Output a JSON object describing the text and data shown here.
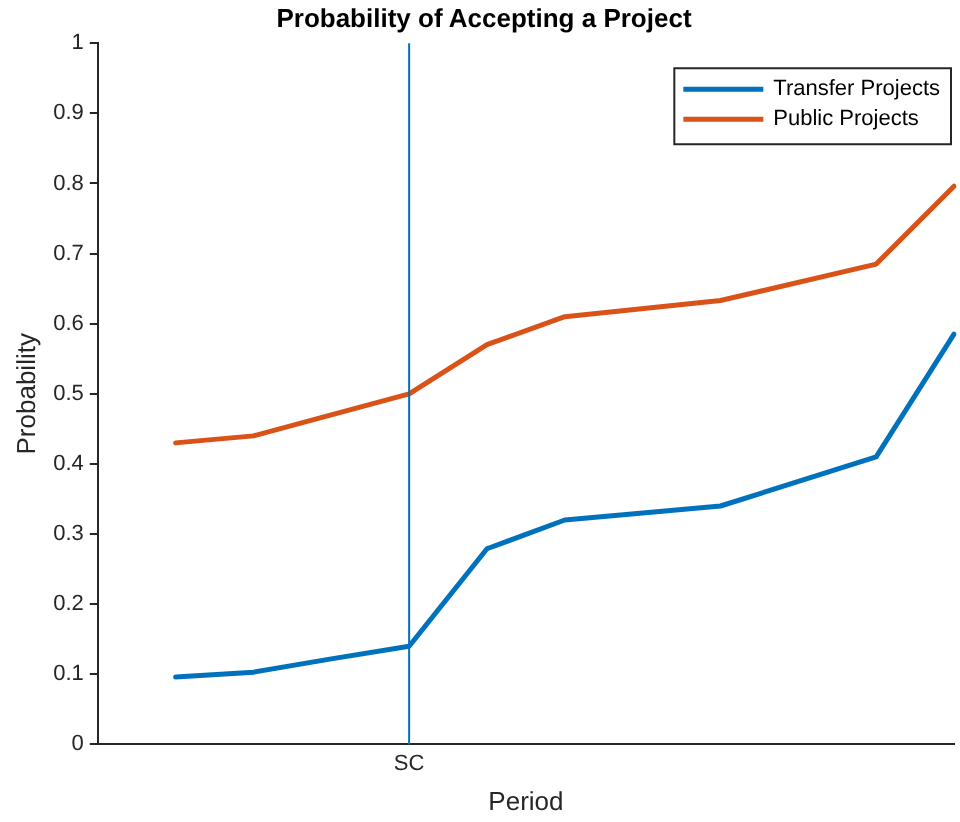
{
  "chart_data": {
    "type": "line",
    "title": "Probability of Accepting a Project",
    "xlabel": "Period",
    "ylabel": "Probability",
    "categories": [
      null,
      null,
      null,
      null,
      "SC",
      null,
      null,
      null,
      null,
      null,
      null,
      null
    ],
    "ylim": [
      0,
      1
    ],
    "yticks": [
      0,
      0.1,
      0.2,
      0.3,
      0.4,
      0.5,
      0.6,
      0.7,
      0.8,
      0.9,
      1
    ],
    "grid": false,
    "legend": "top right",
    "marker": "none",
    "line_style": "solid",
    "ref_lines": [
      {
        "axis": "x",
        "value": "SC",
        "color": "#0072bd"
      }
    ],
    "series": [
      {
        "name": "Transfer Projects",
        "color": "#0072bd",
        "values": [
          null,
          0.096,
          0.103,
          0.122,
          0.14,
          0.279,
          0.32,
          null,
          0.34,
          null,
          0.41,
          0.585
        ]
      },
      {
        "name": "Public Projects",
        "color": "#d95319",
        "values": [
          null,
          0.43,
          0.44,
          0.47,
          0.5,
          0.57,
          0.61,
          null,
          0.633,
          null,
          0.685,
          0.796
        ]
      }
    ]
  }
}
